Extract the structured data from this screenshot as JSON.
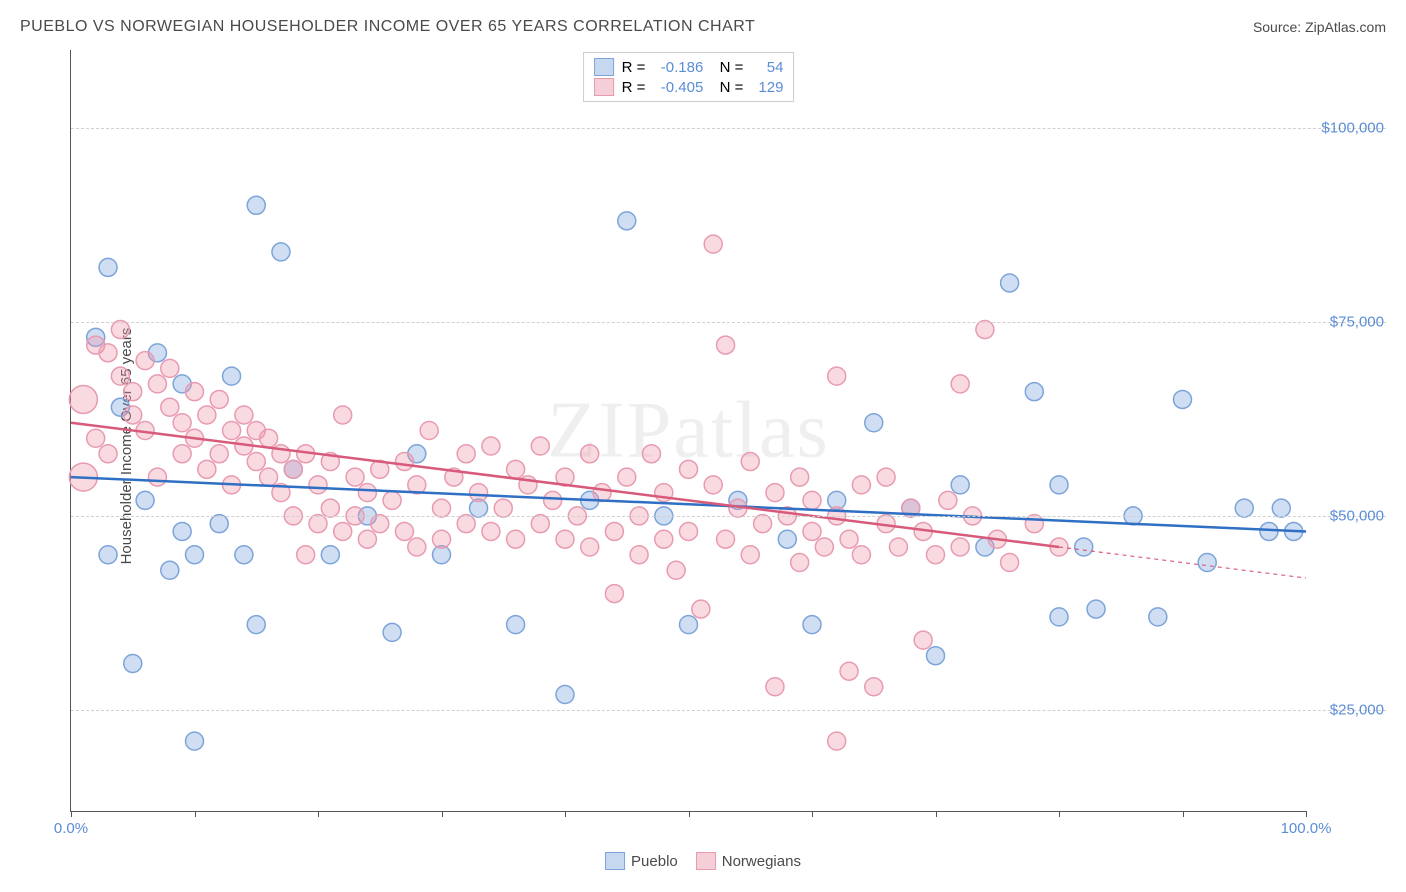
{
  "title": "PUEBLO VS NORWEGIAN HOUSEHOLDER INCOME OVER 65 YEARS CORRELATION CHART",
  "source": "Source: ZipAtlas.com",
  "y_axis_label": "Householder Income Over 65 years",
  "watermark": "ZIPatlas",
  "chart": {
    "type": "scatter",
    "background_color": "#ffffff",
    "grid_color": "#d0d0d0",
    "axis_color": "#555555",
    "x_range": [
      0,
      100
    ],
    "y_range": [
      12000,
      110000
    ],
    "y_ticks": [
      {
        "value": 25000,
        "label": "$25,000"
      },
      {
        "value": 50000,
        "label": "$50,000"
      },
      {
        "value": 75000,
        "label": "$75,000"
      },
      {
        "value": 100000,
        "label": "$100,000"
      }
    ],
    "x_tick_positions": [
      0,
      10,
      20,
      30,
      40,
      50,
      60,
      70,
      80,
      90,
      100
    ],
    "x_tick_labels": [
      {
        "value": 0,
        "label": "0.0%"
      },
      {
        "value": 100,
        "label": "100.0%"
      }
    ],
    "tick_label_color": "#5b8dd6",
    "series": [
      {
        "name": "Pueblo",
        "fill_color": "rgba(120,160,220,0.35)",
        "stroke_color": "#7da4d9",
        "swatch_fill": "#c6d8f0",
        "swatch_border": "#7da4d9",
        "R": "-0.186",
        "N": "54",
        "marker_radius": 9,
        "trend_line": {
          "x1": 0,
          "y1": 55000,
          "x2": 100,
          "y2": 48000,
          "color": "#2f6fc4",
          "width": 2.5,
          "dash_from_x": null
        },
        "points": [
          {
            "x": 2,
            "y": 73000
          },
          {
            "x": 3,
            "y": 45000
          },
          {
            "x": 3,
            "y": 82000
          },
          {
            "x": 4,
            "y": 64000
          },
          {
            "x": 5,
            "y": 31000
          },
          {
            "x": 6,
            "y": 52000
          },
          {
            "x": 7,
            "y": 71000
          },
          {
            "x": 8,
            "y": 43000
          },
          {
            "x": 9,
            "y": 48000
          },
          {
            "x": 9,
            "y": 67000
          },
          {
            "x": 10,
            "y": 21000
          },
          {
            "x": 10,
            "y": 45000
          },
          {
            "x": 12,
            "y": 49000
          },
          {
            "x": 13,
            "y": 68000
          },
          {
            "x": 14,
            "y": 45000
          },
          {
            "x": 15,
            "y": 90000
          },
          {
            "x": 15,
            "y": 36000
          },
          {
            "x": 17,
            "y": 84000
          },
          {
            "x": 18,
            "y": 56000
          },
          {
            "x": 21,
            "y": 45000
          },
          {
            "x": 24,
            "y": 50000
          },
          {
            "x": 26,
            "y": 35000
          },
          {
            "x": 28,
            "y": 58000
          },
          {
            "x": 30,
            "y": 45000
          },
          {
            "x": 33,
            "y": 51000
          },
          {
            "x": 36,
            "y": 36000
          },
          {
            "x": 40,
            "y": 27000
          },
          {
            "x": 42,
            "y": 52000
          },
          {
            "x": 45,
            "y": 88000
          },
          {
            "x": 48,
            "y": 50000
          },
          {
            "x": 50,
            "y": 36000
          },
          {
            "x": 54,
            "y": 52000
          },
          {
            "x": 58,
            "y": 47000
          },
          {
            "x": 60,
            "y": 36000
          },
          {
            "x": 62,
            "y": 52000
          },
          {
            "x": 65,
            "y": 62000
          },
          {
            "x": 68,
            "y": 51000
          },
          {
            "x": 70,
            "y": 32000
          },
          {
            "x": 72,
            "y": 54000
          },
          {
            "x": 74,
            "y": 46000
          },
          {
            "x": 76,
            "y": 80000
          },
          {
            "x": 78,
            "y": 66000
          },
          {
            "x": 80,
            "y": 54000
          },
          {
            "x": 80,
            "y": 37000
          },
          {
            "x": 82,
            "y": 46000
          },
          {
            "x": 83,
            "y": 38000
          },
          {
            "x": 86,
            "y": 50000
          },
          {
            "x": 88,
            "y": 37000
          },
          {
            "x": 90,
            "y": 65000
          },
          {
            "x": 92,
            "y": 44000
          },
          {
            "x": 95,
            "y": 51000
          },
          {
            "x": 97,
            "y": 48000
          },
          {
            "x": 98,
            "y": 51000
          },
          {
            "x": 99,
            "y": 48000
          }
        ]
      },
      {
        "name": "Norwegians",
        "fill_color": "rgba(240,150,170,0.35)",
        "stroke_color": "#e89bb0",
        "swatch_fill": "#f5cfd8",
        "swatch_border": "#e89bb0",
        "R": "-0.405",
        "N": "129",
        "marker_radius": 9,
        "trend_line": {
          "x1": 0,
          "y1": 62000,
          "x2": 100,
          "y2": 42000,
          "color": "#d85a7a",
          "width": 2.5,
          "dash_from_x": 80
        },
        "points": [
          {
            "x": 1,
            "y": 65000,
            "r": 14
          },
          {
            "x": 1,
            "y": 55000,
            "r": 14
          },
          {
            "x": 2,
            "y": 72000
          },
          {
            "x": 2,
            "y": 60000
          },
          {
            "x": 3,
            "y": 71000
          },
          {
            "x": 3,
            "y": 58000
          },
          {
            "x": 4,
            "y": 68000
          },
          {
            "x": 4,
            "y": 74000
          },
          {
            "x": 5,
            "y": 66000
          },
          {
            "x": 5,
            "y": 63000
          },
          {
            "x": 6,
            "y": 70000
          },
          {
            "x": 6,
            "y": 61000
          },
          {
            "x": 7,
            "y": 67000
          },
          {
            "x": 7,
            "y": 55000
          },
          {
            "x": 8,
            "y": 64000
          },
          {
            "x": 8,
            "y": 69000
          },
          {
            "x": 9,
            "y": 62000
          },
          {
            "x": 9,
            "y": 58000
          },
          {
            "x": 10,
            "y": 66000
          },
          {
            "x": 10,
            "y": 60000
          },
          {
            "x": 11,
            "y": 63000
          },
          {
            "x": 11,
            "y": 56000
          },
          {
            "x": 12,
            "y": 65000
          },
          {
            "x": 12,
            "y": 58000
          },
          {
            "x": 13,
            "y": 61000
          },
          {
            "x": 13,
            "y": 54000
          },
          {
            "x": 14,
            "y": 59000
          },
          {
            "x": 14,
            "y": 63000
          },
          {
            "x": 15,
            "y": 57000
          },
          {
            "x": 15,
            "y": 61000
          },
          {
            "x": 16,
            "y": 55000
          },
          {
            "x": 16,
            "y": 60000
          },
          {
            "x": 17,
            "y": 58000
          },
          {
            "x": 17,
            "y": 53000
          },
          {
            "x": 18,
            "y": 56000
          },
          {
            "x": 18,
            "y": 50000
          },
          {
            "x": 19,
            "y": 45000
          },
          {
            "x": 19,
            "y": 58000
          },
          {
            "x": 20,
            "y": 54000
          },
          {
            "x": 20,
            "y": 49000
          },
          {
            "x": 21,
            "y": 57000
          },
          {
            "x": 21,
            "y": 51000
          },
          {
            "x": 22,
            "y": 63000
          },
          {
            "x": 22,
            "y": 48000
          },
          {
            "x": 23,
            "y": 55000
          },
          {
            "x": 23,
            "y": 50000
          },
          {
            "x": 24,
            "y": 53000
          },
          {
            "x": 24,
            "y": 47000
          },
          {
            "x": 25,
            "y": 56000
          },
          {
            "x": 25,
            "y": 49000
          },
          {
            "x": 26,
            "y": 52000
          },
          {
            "x": 27,
            "y": 57000
          },
          {
            "x": 27,
            "y": 48000
          },
          {
            "x": 28,
            "y": 54000
          },
          {
            "x": 28,
            "y": 46000
          },
          {
            "x": 29,
            "y": 61000
          },
          {
            "x": 30,
            "y": 51000
          },
          {
            "x": 30,
            "y": 47000
          },
          {
            "x": 31,
            "y": 55000
          },
          {
            "x": 32,
            "y": 49000
          },
          {
            "x": 32,
            "y": 58000
          },
          {
            "x": 33,
            "y": 53000
          },
          {
            "x": 34,
            "y": 48000
          },
          {
            "x": 34,
            "y": 59000
          },
          {
            "x": 35,
            "y": 51000
          },
          {
            "x": 36,
            "y": 56000
          },
          {
            "x": 36,
            "y": 47000
          },
          {
            "x": 37,
            "y": 54000
          },
          {
            "x": 38,
            "y": 49000
          },
          {
            "x": 38,
            "y": 59000
          },
          {
            "x": 39,
            "y": 52000
          },
          {
            "x": 40,
            "y": 47000
          },
          {
            "x": 40,
            "y": 55000
          },
          {
            "x": 41,
            "y": 50000
          },
          {
            "x": 42,
            "y": 58000
          },
          {
            "x": 42,
            "y": 46000
          },
          {
            "x": 43,
            "y": 53000
          },
          {
            "x": 44,
            "y": 48000
          },
          {
            "x": 44,
            "y": 40000
          },
          {
            "x": 45,
            "y": 55000
          },
          {
            "x": 46,
            "y": 50000
          },
          {
            "x": 46,
            "y": 45000
          },
          {
            "x": 47,
            "y": 58000
          },
          {
            "x": 48,
            "y": 47000
          },
          {
            "x": 48,
            "y": 53000
          },
          {
            "x": 49,
            "y": 43000
          },
          {
            "x": 50,
            "y": 56000
          },
          {
            "x": 50,
            "y": 48000
          },
          {
            "x": 51,
            "y": 38000
          },
          {
            "x": 52,
            "y": 54000
          },
          {
            "x": 52,
            "y": 85000
          },
          {
            "x": 53,
            "y": 72000
          },
          {
            "x": 53,
            "y": 47000
          },
          {
            "x": 54,
            "y": 51000
          },
          {
            "x": 55,
            "y": 45000
          },
          {
            "x": 55,
            "y": 57000
          },
          {
            "x": 56,
            "y": 49000
          },
          {
            "x": 57,
            "y": 53000
          },
          {
            "x": 57,
            "y": 28000
          },
          {
            "x": 58,
            "y": 50000
          },
          {
            "x": 59,
            "y": 44000
          },
          {
            "x": 59,
            "y": 55000
          },
          {
            "x": 60,
            "y": 48000
          },
          {
            "x": 60,
            "y": 52000
          },
          {
            "x": 61,
            "y": 46000
          },
          {
            "x": 62,
            "y": 68000
          },
          {
            "x": 62,
            "y": 50000
          },
          {
            "x": 62,
            "y": 21000
          },
          {
            "x": 63,
            "y": 30000
          },
          {
            "x": 63,
            "y": 47000
          },
          {
            "x": 64,
            "y": 54000
          },
          {
            "x": 64,
            "y": 45000
          },
          {
            "x": 65,
            "y": 28000
          },
          {
            "x": 66,
            "y": 49000
          },
          {
            "x": 66,
            "y": 55000
          },
          {
            "x": 67,
            "y": 46000
          },
          {
            "x": 68,
            "y": 51000
          },
          {
            "x": 69,
            "y": 34000
          },
          {
            "x": 69,
            "y": 48000
          },
          {
            "x": 70,
            "y": 45000
          },
          {
            "x": 71,
            "y": 52000
          },
          {
            "x": 72,
            "y": 67000
          },
          {
            "x": 72,
            "y": 46000
          },
          {
            "x": 73,
            "y": 50000
          },
          {
            "x": 74,
            "y": 74000
          },
          {
            "x": 75,
            "y": 47000
          },
          {
            "x": 76,
            "y": 44000
          },
          {
            "x": 78,
            "y": 49000
          },
          {
            "x": 80,
            "y": 46000
          }
        ]
      }
    ]
  },
  "legend_bottom": [
    {
      "label": "Pueblo",
      "swatch_fill": "#c6d8f0",
      "swatch_border": "#7da4d9"
    },
    {
      "label": "Norwegians",
      "swatch_fill": "#f5cfd8",
      "swatch_border": "#e89bb0"
    }
  ]
}
